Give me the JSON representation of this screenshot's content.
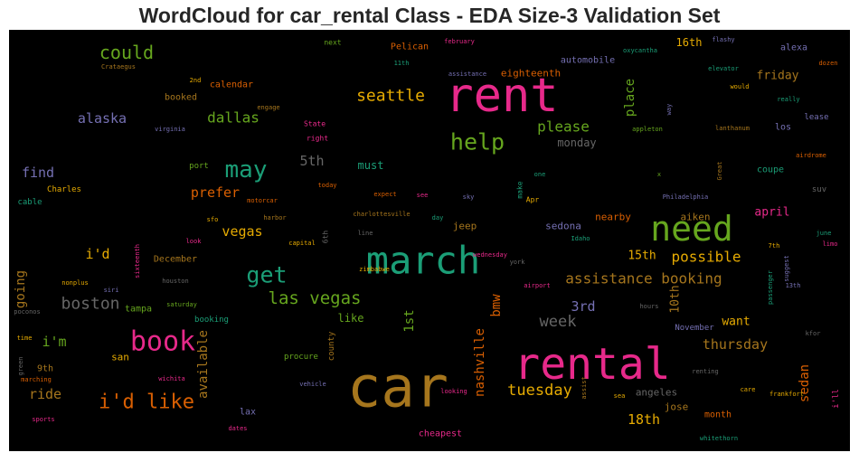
{
  "title": "WordCloud for car_rental Class - EDA Size-3 Validation Set",
  "chart_data": {
    "type": "wordcloud",
    "background": "#000000",
    "words": [
      {
        "text": "car",
        "weight": 100,
        "color": "#a6761d"
      },
      {
        "text": "rent",
        "weight": 78,
        "color": "#e7298a"
      },
      {
        "text": "rental",
        "weight": 75,
        "color": "#e7298a"
      },
      {
        "text": "march",
        "weight": 60,
        "color": "#1b9e77"
      },
      {
        "text": "need",
        "weight": 58,
        "color": "#66a61e"
      },
      {
        "text": "book",
        "weight": 45,
        "color": "#e7298a"
      },
      {
        "text": "may",
        "weight": 38,
        "color": "#1b9e77"
      },
      {
        "text": "get",
        "weight": 37,
        "color": "#1b9e77"
      },
      {
        "text": "help",
        "weight": 37,
        "color": "#66a61e"
      },
      {
        "text": "i'd like",
        "weight": 35,
        "color": "#d95f02"
      },
      {
        "text": "could",
        "weight": 32,
        "color": "#66a61e"
      },
      {
        "text": "las vegas",
        "weight": 30,
        "color": "#66a61e"
      },
      {
        "text": "seattle",
        "weight": 28,
        "color": "#e6ab02"
      },
      {
        "text": "boston",
        "weight": 28,
        "color": "#666666"
      },
      {
        "text": "tuesday",
        "weight": 26,
        "color": "#e6ab02"
      },
      {
        "text": "week",
        "weight": 26,
        "color": "#666666"
      },
      {
        "text": "please",
        "weight": 25,
        "color": "#66a61e"
      },
      {
        "text": "possible",
        "weight": 25,
        "color": "#e6ab02"
      },
      {
        "text": "assistance booking",
        "weight": 25,
        "color": "#a6761d"
      },
      {
        "text": "dallas",
        "weight": 25,
        "color": "#66a61e"
      },
      {
        "text": "prefer",
        "weight": 23,
        "color": "#d95f02"
      },
      {
        "text": "alaska",
        "weight": 23,
        "color": "#7570b3"
      },
      {
        "text": "ride",
        "weight": 23,
        "color": "#a6761d"
      },
      {
        "text": "5th",
        "weight": 23,
        "color": "#666666"
      },
      {
        "text": "3rd",
        "weight": 23,
        "color": "#7570b3"
      },
      {
        "text": "vegas",
        "weight": 22,
        "color": "#e6ab02"
      },
      {
        "text": "thursday",
        "weight": 22,
        "color": "#a6761d"
      },
      {
        "text": "18th",
        "weight": 22,
        "color": "#e6ab02"
      },
      {
        "text": "i'd",
        "weight": 22,
        "color": "#e6ab02"
      },
      {
        "text": "i'm",
        "weight": 22,
        "color": "#66a61e"
      },
      {
        "text": "find",
        "weight": 21,
        "color": "#7570b3"
      },
      {
        "text": "going",
        "weight": 21,
        "color": "#a6761d"
      },
      {
        "text": "available",
        "weight": 21,
        "color": "#a6761d"
      },
      {
        "text": "nashville",
        "weight": 21,
        "color": "#d95f02"
      },
      {
        "text": "sedan",
        "weight": 21,
        "color": "#d95f02"
      },
      {
        "text": "bmw",
        "weight": 20,
        "color": "#d95f02"
      },
      {
        "text": "1st",
        "weight": 20,
        "color": "#66a61e"
      },
      {
        "text": "place",
        "weight": 20,
        "color": "#66a61e"
      },
      {
        "text": "15th",
        "weight": 19,
        "color": "#e6ab02"
      },
      {
        "text": "10th",
        "weight": 19,
        "color": "#a6761d"
      },
      {
        "text": "friday",
        "weight": 19,
        "color": "#a6761d"
      },
      {
        "text": "april",
        "weight": 19,
        "color": "#e7298a"
      },
      {
        "text": "want",
        "weight": 19,
        "color": "#e6ab02"
      },
      {
        "text": "monday",
        "weight": 18,
        "color": "#666666"
      },
      {
        "text": "like",
        "weight": 18,
        "color": "#66a61e"
      },
      {
        "text": "must",
        "weight": 17,
        "color": "#1b9e77"
      },
      {
        "text": "16th",
        "weight": 17,
        "color": "#e6ab02"
      },
      {
        "text": "jeep",
        "weight": 16,
        "color": "#a6761d"
      },
      {
        "text": "sedona",
        "weight": 16,
        "color": "#7570b3"
      },
      {
        "text": "aiken",
        "weight": 16,
        "color": "#a6761d"
      },
      {
        "text": "nearby",
        "weight": 16,
        "color": "#d95f02"
      },
      {
        "text": "angeles",
        "weight": 16,
        "color": "#666666"
      },
      {
        "text": "jose",
        "weight": 16,
        "color": "#a6761d"
      },
      {
        "text": "san",
        "weight": 16,
        "color": "#e6ab02"
      },
      {
        "text": "eighteenth",
        "weight": 16,
        "color": "#d95f02"
      },
      {
        "text": "automobile",
        "weight": 15,
        "color": "#7570b3"
      },
      {
        "text": "tampa",
        "weight": 15,
        "color": "#66a61e"
      },
      {
        "text": "Pelican",
        "weight": 15,
        "color": "#d95f02"
      },
      {
        "text": "9th",
        "weight": 15,
        "color": "#a6761d"
      },
      {
        "text": "los",
        "weight": 15,
        "color": "#7570b3"
      },
      {
        "text": "calendar",
        "weight": 15,
        "color": "#d95f02"
      },
      {
        "text": "booked",
        "weight": 15,
        "color": "#a6761d"
      },
      {
        "text": "alexa",
        "weight": 15,
        "color": "#7570b3"
      },
      {
        "text": "coupe",
        "weight": 14,
        "color": "#1b9e77"
      },
      {
        "text": "month",
        "weight": 14,
        "color": "#d95f02"
      },
      {
        "text": "lax",
        "weight": 14,
        "color": "#7570b3"
      },
      {
        "text": "cheapest",
        "weight": 14,
        "color": "#e7298a"
      },
      {
        "text": "December",
        "weight": 14,
        "color": "#a6761d"
      },
      {
        "text": "November",
        "weight": 13,
        "color": "#7570b3"
      },
      {
        "text": "booking",
        "weight": 13,
        "color": "#1b9e77"
      },
      {
        "text": "lease",
        "weight": 13,
        "color": "#7570b3"
      },
      {
        "text": "Charles",
        "weight": 13,
        "color": "#e6ab02"
      },
      {
        "text": "port",
        "weight": 13,
        "color": "#66a61e"
      },
      {
        "text": "county",
        "weight": 13,
        "color": "#a6761d"
      },
      {
        "text": "procure",
        "weight": 13,
        "color": "#66a61e"
      },
      {
        "text": "i'll",
        "weight": 13,
        "color": "#e7298a"
      },
      {
        "text": "suv",
        "weight": 12,
        "color": "#666666"
      },
      {
        "text": "next",
        "weight": 12,
        "color": "#66a61e"
      },
      {
        "text": "right",
        "weight": 12,
        "color": "#e7298a"
      },
      {
        "text": "State",
        "weight": 12,
        "color": "#e7298a"
      },
      {
        "text": "6th",
        "weight": 12,
        "color": "#666666"
      },
      {
        "text": "cable",
        "weight": 12,
        "color": "#1b9e77"
      },
      {
        "text": "make",
        "weight": 12,
        "color": "#1b9e77"
      },
      {
        "text": "Apr",
        "weight": 11,
        "color": "#e6ab02"
      },
      {
        "text": "Crataegus",
        "weight": 11,
        "color": "#a6761d"
      },
      {
        "text": "february",
        "weight": 11,
        "color": "#e7298a"
      },
      {
        "text": "oxycantha",
        "weight": 11,
        "color": "#1b9e77"
      },
      {
        "text": "flashy",
        "weight": 11,
        "color": "#7570b3"
      },
      {
        "text": "dozen",
        "weight": 11,
        "color": "#d95f02"
      },
      {
        "text": "elevator",
        "weight": 11,
        "color": "#1b9e77"
      },
      {
        "text": "would",
        "weight": 11,
        "color": "#e6ab02"
      },
      {
        "text": "really",
        "weight": 11,
        "color": "#1b9e77"
      },
      {
        "text": "appleton",
        "weight": 11,
        "color": "#66a61e"
      },
      {
        "text": "lanthanum",
        "weight": 11,
        "color": "#a6761d"
      },
      {
        "text": "airdrome",
        "weight": 11,
        "color": "#d95f02"
      },
      {
        "text": "Philadelphia",
        "weight": 11,
        "color": "#7570b3"
      },
      {
        "text": "june",
        "weight": 11,
        "color": "#1b9e77"
      },
      {
        "text": "limo",
        "weight": 11,
        "color": "#e7298a"
      },
      {
        "text": "7th",
        "weight": 11,
        "color": "#e6ab02"
      },
      {
        "text": "13th",
        "weight": 11,
        "color": "#7570b3"
      },
      {
        "text": "passenger",
        "weight": 11,
        "color": "#1b9e77"
      },
      {
        "text": "suggest",
        "weight": 11,
        "color": "#7570b3"
      },
      {
        "text": "kfor",
        "weight": 11,
        "color": "#666666"
      },
      {
        "text": "frankfort",
        "weight": 11,
        "color": "#e6ab02"
      },
      {
        "text": "care",
        "weight": 11,
        "color": "#e6ab02"
      },
      {
        "text": "renting",
        "weight": 11,
        "color": "#666666"
      },
      {
        "text": "whitethorn",
        "weight": 11,
        "color": "#1b9e77"
      },
      {
        "text": "hours",
        "weight": 11,
        "color": "#666666"
      },
      {
        "text": "Idaho",
        "weight": 11,
        "color": "#1b9e77"
      },
      {
        "text": "york",
        "weight": 11,
        "color": "#666666"
      },
      {
        "text": "airport",
        "weight": 11,
        "color": "#e7298a"
      },
      {
        "text": "wednesday",
        "weight": 11,
        "color": "#e7298a"
      },
      {
        "text": "sea",
        "weight": 11,
        "color": "#e6ab02"
      },
      {
        "text": "assist",
        "weight": 11,
        "color": "#a6761d"
      },
      {
        "text": "looking",
        "weight": 11,
        "color": "#e7298a"
      },
      {
        "text": "vehicle",
        "weight": 11,
        "color": "#7570b3"
      },
      {
        "text": "marching",
        "weight": 11,
        "color": "#d95f02"
      },
      {
        "text": "wichita",
        "weight": 11,
        "color": "#e7298a"
      },
      {
        "text": "dates",
        "weight": 11,
        "color": "#e7298a"
      },
      {
        "text": "sports",
        "weight": 11,
        "color": "#e7298a"
      },
      {
        "text": "green",
        "weight": 11,
        "color": "#666666"
      },
      {
        "text": "time",
        "weight": 11,
        "color": "#e6ab02"
      },
      {
        "text": "poconos",
        "weight": 11,
        "color": "#666666"
      },
      {
        "text": "nonplus",
        "weight": 11,
        "color": "#e6ab02"
      },
      {
        "text": "siri",
        "weight": 11,
        "color": "#7570b3"
      },
      {
        "text": "sixteenth",
        "weight": 11,
        "color": "#e7298a"
      },
      {
        "text": "houston",
        "weight": 11,
        "color": "#666666"
      },
      {
        "text": "saturday",
        "weight": 11,
        "color": "#66a61e"
      },
      {
        "text": "zimbabwe",
        "weight": 11,
        "color": "#e6ab02"
      },
      {
        "text": "capital",
        "weight": 11,
        "color": "#e6ab02"
      },
      {
        "text": "harbor",
        "weight": 11,
        "color": "#a6761d"
      },
      {
        "text": "line",
        "weight": 11,
        "color": "#666666"
      },
      {
        "text": "day",
        "weight": 11,
        "color": "#1b9e77"
      },
      {
        "text": "charlottesville",
        "weight": 11,
        "color": "#a6761d"
      },
      {
        "text": "sky",
        "weight": 11,
        "color": "#7570b3"
      },
      {
        "text": "see",
        "weight": 11,
        "color": "#e7298a"
      },
      {
        "text": "expect",
        "weight": 11,
        "color": "#d95f02"
      },
      {
        "text": "today",
        "weight": 11,
        "color": "#d95f02"
      },
      {
        "text": "motorcar",
        "weight": 11,
        "color": "#d95f02"
      },
      {
        "text": "sfo",
        "weight": 11,
        "color": "#e6ab02"
      },
      {
        "text": "look",
        "weight": 11,
        "color": "#e7298a"
      },
      {
        "text": "virginia",
        "weight": 11,
        "color": "#7570b3"
      },
      {
        "text": "engage",
        "weight": 11,
        "color": "#a6761d"
      },
      {
        "text": "2nd",
        "weight": 11,
        "color": "#e6ab02"
      },
      {
        "text": "11th",
        "weight": 11,
        "color": "#1b9e77"
      },
      {
        "text": "assistance",
        "weight": 11,
        "color": "#7570b3"
      },
      {
        "text": "one",
        "weight": 11,
        "color": "#1b9e77"
      },
      {
        "text": "x",
        "weight": 11,
        "color": "#66a61e"
      },
      {
        "text": "Great",
        "weight": 11,
        "color": "#a6761d"
      },
      {
        "text": "way",
        "weight": 11,
        "color": "#7570b3"
      }
    ]
  }
}
